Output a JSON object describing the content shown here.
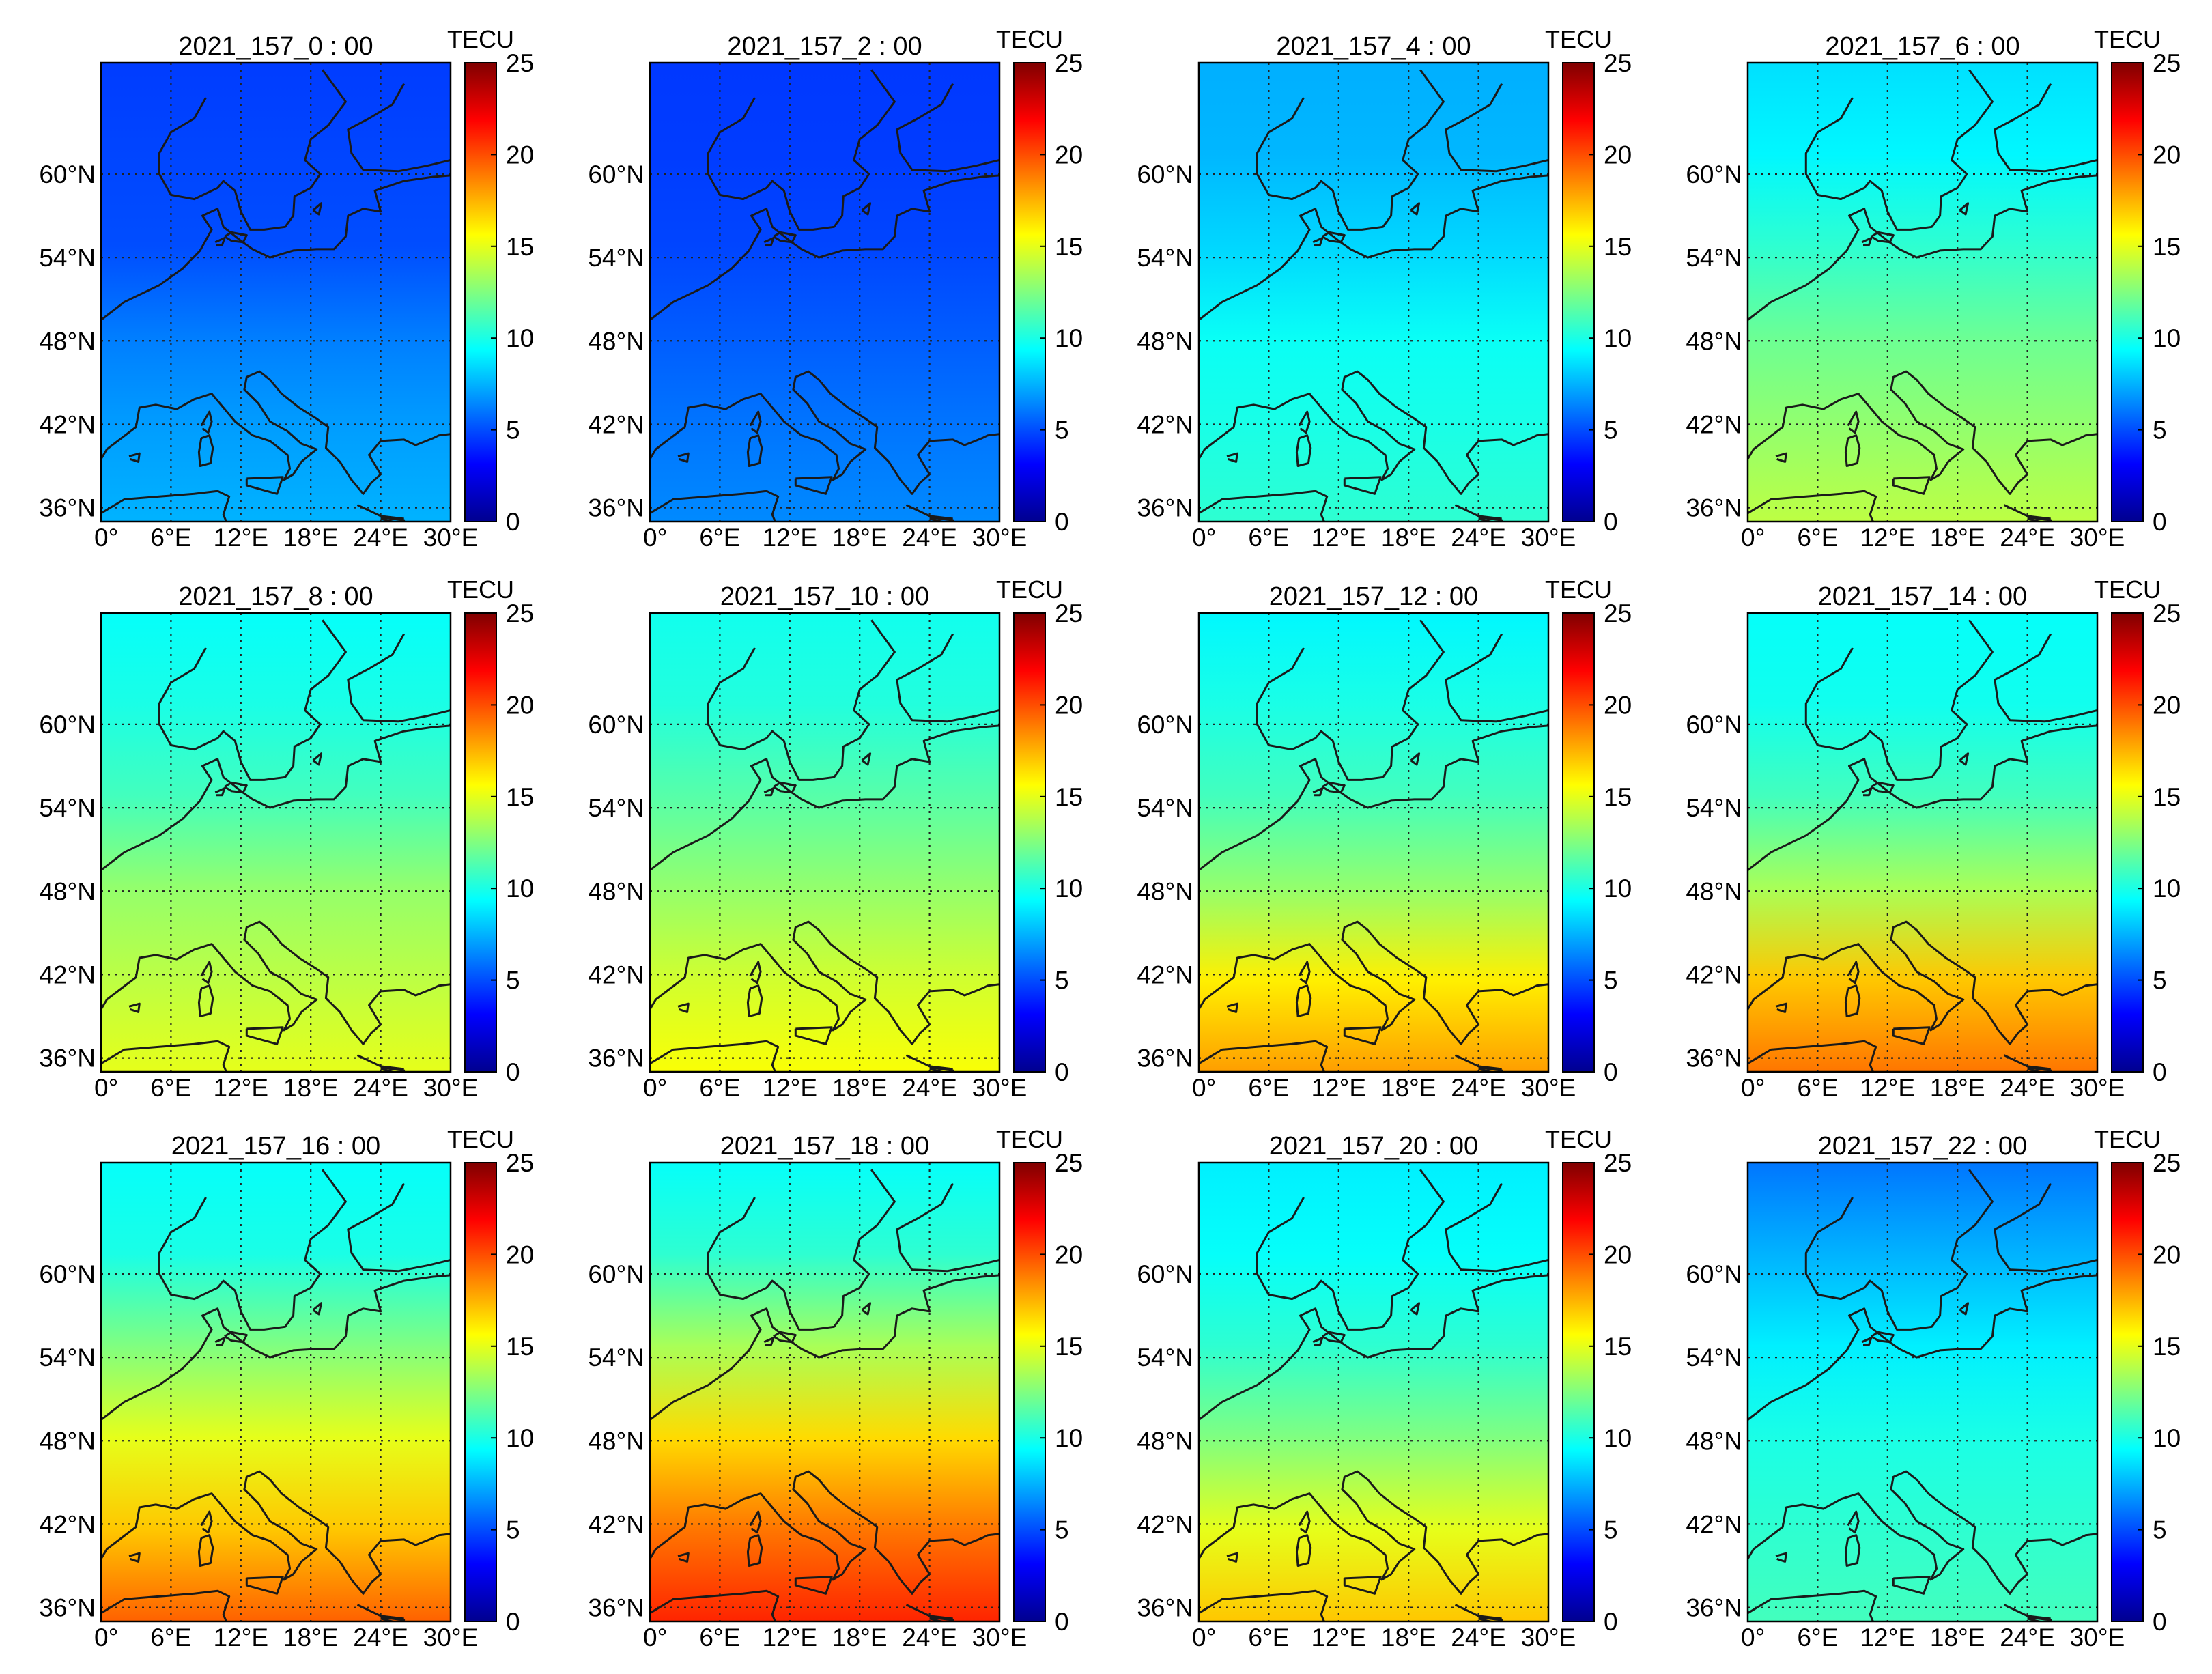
{
  "chart_data": {
    "type": "heatmap",
    "description_units": "TECU",
    "colormap": [
      "#00008f",
      "#0000ff",
      "#0080ff",
      "#00ffff",
      "#80ff80",
      "#ffff00",
      "#ff8000",
      "#ff0000",
      "#800000"
    ],
    "colorbar": {
      "label": "TECU",
      "range": [
        0,
        25
      ],
      "ticks": [
        0,
        5,
        10,
        15,
        20,
        25
      ]
    },
    "x_axis": {
      "range": [
        0,
        30
      ],
      "ticks": [
        0,
        6,
        12,
        18,
        24,
        30
      ],
      "tick_labels": [
        "0°",
        "6°E",
        "12°E",
        "18°E",
        "24°E",
        "30°E"
      ]
    },
    "y_axis": {
      "range": [
        35,
        68
      ],
      "ticks": [
        36,
        42,
        48,
        54,
        60
      ],
      "tick_labels": [
        "36°N",
        "42°N",
        "48°N",
        "54°N",
        "60°N"
      ]
    },
    "grid": true,
    "lat_profile_points": [
      36,
      42,
      48,
      54,
      60,
      66
    ],
    "panels": [
      {
        "title": "2021_157_0 : 00",
        "tec_at_lat": [
          7.5,
          7.0,
          6.2,
          5.0,
          4.8,
          4.6
        ]
      },
      {
        "title": "2021_157_2 : 00",
        "tec_at_lat": [
          6.5,
          6.0,
          5.4,
          4.8,
          4.6,
          4.5
        ]
      },
      {
        "title": "2021_157_4 : 00",
        "tec_at_lat": [
          10.5,
          10.0,
          9.6,
          8.4,
          7.6,
          7.4
        ]
      },
      {
        "title": "2021_157_6 : 00",
        "tec_at_lat": [
          14.0,
          13.0,
          12.0,
          10.5,
          9.2,
          8.6
        ]
      },
      {
        "title": "2021_157_8 : 00",
        "tec_at_lat": [
          15.0,
          14.0,
          13.0,
          11.0,
          10.0,
          9.5
        ]
      },
      {
        "title": "2021_157_10 : 00",
        "tec_at_lat": [
          15.5,
          14.5,
          13.0,
          11.5,
          10.2,
          9.8
        ]
      },
      {
        "title": "2021_157_12 : 00",
        "tec_at_lat": [
          18.0,
          16.0,
          13.0,
          11.0,
          10.0,
          9.2
        ]
      },
      {
        "title": "2021_157_14 : 00",
        "tec_at_lat": [
          19.0,
          17.0,
          13.5,
          11.0,
          9.8,
          9.5
        ]
      },
      {
        "title": "2021_157_16 : 00",
        "tec_at_lat": [
          19.5,
          17.0,
          15.0,
          12.5,
          10.0,
          9.5
        ]
      },
      {
        "title": "2021_157_18 : 00",
        "tec_at_lat": [
          21.0,
          19.0,
          16.5,
          13.5,
          10.5,
          9.5
        ]
      },
      {
        "title": "2021_157_20 : 00",
        "tec_at_lat": [
          17.0,
          15.0,
          12.5,
          10.5,
          9.5,
          9.0
        ]
      },
      {
        "title": "2021_157_22 : 00",
        "tec_at_lat": [
          11.0,
          10.5,
          10.0,
          9.0,
          7.5,
          6.0
        ]
      }
    ]
  }
}
